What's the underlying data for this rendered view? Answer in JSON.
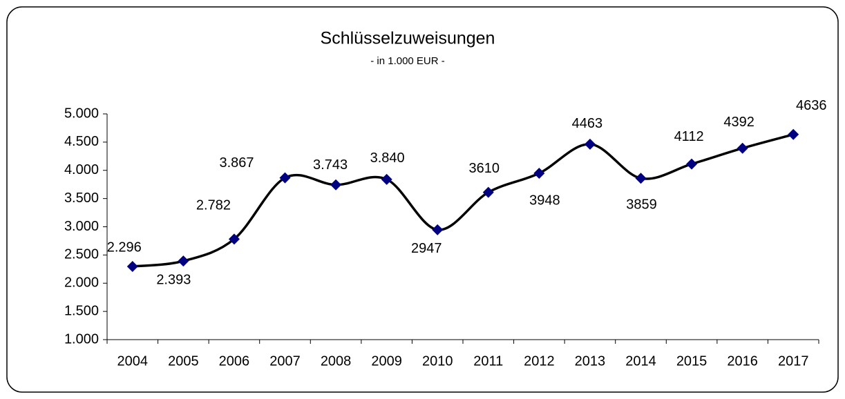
{
  "chart_data": {
    "type": "line",
    "title": "Schlüsselzuweisungen",
    "subtitle": "- in 1.000 EUR -",
    "categories": [
      "2004",
      "2005",
      "2006",
      "2007",
      "2008",
      "2009",
      "2010",
      "2011",
      "2012",
      "2013",
      "2014",
      "2015",
      "2016",
      "2017"
    ],
    "series": [
      {
        "name": "Schlüsselzuweisungen",
        "color": "#000080",
        "line_color": "#000000",
        "smooth": true,
        "values": [
          2296,
          2393,
          2782,
          3867,
          3743,
          3840,
          2947,
          3610,
          3948,
          4463,
          3859,
          4112,
          4392,
          4636
        ],
        "value_labels": [
          "2.296",
          "2.393",
          "2.782",
          "3.867",
          "3.743",
          "3.840",
          "2947",
          "3610",
          "3948",
          "4463",
          "3859",
          "4112",
          "4392",
          "4636"
        ]
      }
    ],
    "ylim": [
      1000,
      5000
    ],
    "yticks": [
      {
        "value": 1000,
        "label": "1.000"
      },
      {
        "value": 1500,
        "label": "1.500"
      },
      {
        "value": 2000,
        "label": "2.000"
      },
      {
        "value": 2500,
        "label": "2.500"
      },
      {
        "value": 3000,
        "label": "3.000"
      },
      {
        "value": 3500,
        "label": "3.500"
      },
      {
        "value": 4000,
        "label": "4.000"
      },
      {
        "value": 4500,
        "label": "4.500"
      },
      {
        "value": 5000,
        "label": "5.000"
      }
    ],
    "grid": false
  }
}
